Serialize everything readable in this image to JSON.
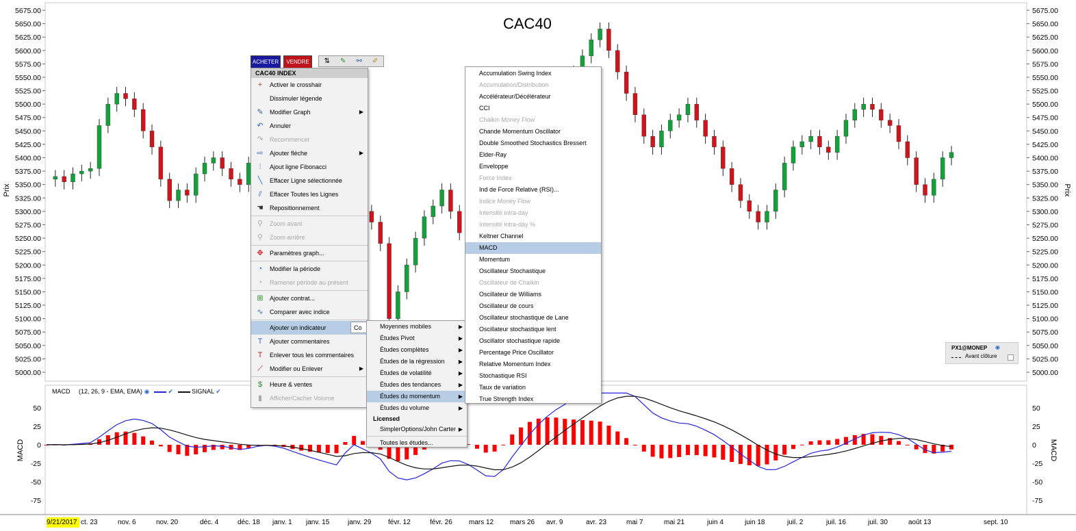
{
  "chart_title": "CAC40",
  "buttons": {
    "buy": "ACHETER",
    "sell": "VENDRE"
  },
  "y_axis": {
    "label": "Prix",
    "ticks": [
      "5675.00",
      "5650.00",
      "5625.00",
      "5600.00",
      "5575.00",
      "5550.00",
      "5525.00",
      "5500.00",
      "5475.00",
      "5450.00",
      "5425.00",
      "5400.00",
      "5375.00",
      "5350.00",
      "5325.00",
      "5300.00",
      "5275.00",
      "5250.00",
      "5225.00",
      "5200.00",
      "5175.00",
      "5150.00",
      "5125.00",
      "5100.00",
      "5075.00",
      "5050.00",
      "5025.00",
      "5000.00"
    ]
  },
  "macd_axis": {
    "label": "MACD",
    "ticks": [
      "50",
      "25",
      "0",
      "-25",
      "-50",
      "-75"
    ]
  },
  "macd_legend": {
    "name": "MACD",
    "params": "(12, 26, 9 - EMA, EMA)",
    "signal": "SIGNAL"
  },
  "x_axis": {
    "first_date": "9/21/2017",
    "ticks": [
      "ct. 23",
      "nov. 6",
      "nov. 20",
      "déc. 4",
      "déc. 18",
      "janv. 1",
      "janv. 15",
      "janv. 29",
      "févr. 12",
      "févr. 26",
      "mars 12",
      "mars 26",
      "avr. 9",
      "avr. 23",
      "mai 7",
      "mai 21",
      "juin 4",
      "juin 18",
      "juil. 2",
      "juil. 16",
      "juil. 30",
      "août 13",
      "sept. 10"
    ]
  },
  "legend_box": {
    "source": "PX1@MONEP",
    "line": "Avant clôture"
  },
  "context_menu": {
    "header": "CAC40 INDEX",
    "items": [
      {
        "label": "Activer le crosshair",
        "icon": "crosshair-icon"
      },
      {
        "label": "Dissimuler légende",
        "icon": ""
      },
      {
        "label": "Modifier Graph",
        "icon": "pencil-chart-icon",
        "submenu": true
      },
      {
        "label": "Annuler",
        "icon": "undo-icon"
      },
      {
        "label": "Recommencer",
        "icon": "redo-icon",
        "disabled": true
      },
      {
        "label": "Ajouter flèche",
        "icon": "arrow-icon",
        "submenu": true
      },
      {
        "label": "Ajout ligne Fibonacci",
        "icon": "fibonacci-icon"
      },
      {
        "label": "Effacer Ligne sélectionnée",
        "icon": "erase-line-icon"
      },
      {
        "label": "Effacer Toutes les Lignes",
        "icon": "erase-all-lines-icon"
      },
      {
        "label": "Repositionnement",
        "icon": "hand-icon"
      },
      {
        "label": "Zoom avant",
        "icon": "zoom-in-icon",
        "disabled": true
      },
      {
        "label": "Zoom arrière",
        "icon": "zoom-out-icon",
        "disabled": true
      },
      {
        "label": "Paramètres graph...",
        "icon": "settings-icon"
      },
      {
        "label": "Modifier la période",
        "icon": "period-icon"
      },
      {
        "label": "Ramener période au présent",
        "icon": "reset-period-icon",
        "disabled": true
      },
      {
        "label": "Ajouter contrat...",
        "icon": "add-contract-icon"
      },
      {
        "label": "Comparer avec indice",
        "icon": "compare-icon"
      },
      {
        "label": "Ajouter un indicateur",
        "icon": "",
        "highlighted": true
      },
      {
        "label": "Ajouter commentaires",
        "icon": "comment-icon"
      },
      {
        "label": "Enlever tous les commentaires",
        "icon": "remove-comments-icon"
      },
      {
        "label": "Modifier ou Enlever",
        "icon": "edit-icon",
        "submenu": true
      },
      {
        "label": "Heure & ventes",
        "icon": "dollar-icon"
      },
      {
        "label": "Afficher/Cacher Volume",
        "icon": "volume-icon",
        "disabled": true
      }
    ],
    "tooltip": "Co"
  },
  "indicator_menu": {
    "items": [
      "Moyennes mobiles",
      "Études Pivot",
      "Études complètes",
      "Études de la régression",
      "Études de volatilité",
      "Études des tendances",
      "Études du momentum",
      "Études du volume"
    ],
    "highlighted": "Études du momentum",
    "licensed_label": "Licensed",
    "licensed_items": [
      "SimplerOptions/John Carter"
    ],
    "all_studies": "Toutes les études..."
  },
  "momentum_menu": {
    "items": [
      {
        "label": "Accumulation Swing Index"
      },
      {
        "label": "Accumulation/Distribution",
        "disabled": true
      },
      {
        "label": "Accélérateur/Décélérateur"
      },
      {
        "label": "CCI"
      },
      {
        "label": "Chaikin Money Flow",
        "disabled": true
      },
      {
        "label": "Chande Momentum Oscillator"
      },
      {
        "label": "Double Smoothed Stochastics Bressert"
      },
      {
        "label": "Elder-Ray"
      },
      {
        "label": "Enveloppe"
      },
      {
        "label": "Force Index",
        "disabled": true
      },
      {
        "label": "Ind de Force Relative (RSI)..."
      },
      {
        "label": "Indice Money Flow",
        "disabled": true
      },
      {
        "label": "Intensité intra-day",
        "disabled": true
      },
      {
        "label": "Intensité intra-day %",
        "disabled": true
      },
      {
        "label": "Keltner Channel"
      },
      {
        "label": "MACD",
        "highlighted": true
      },
      {
        "label": "Momentum"
      },
      {
        "label": "Oscillateur Stochastique"
      },
      {
        "label": "Oscillateur de Chaikin",
        "disabled": true
      },
      {
        "label": "Oscillateur de Williams"
      },
      {
        "label": "Oscillateur de cours"
      },
      {
        "label": "Oscillateur stochastique de Lane"
      },
      {
        "label": "Oscillateur stochastique lent"
      },
      {
        "label": "Oscillator stochastique rapide"
      },
      {
        "label": "Percentage Price Oscillator"
      },
      {
        "label": "Relative Momentum Index"
      },
      {
        "label": "Stochastique RSI"
      },
      {
        "label": "Taux de variation"
      },
      {
        "label": "True Strength Index"
      }
    ]
  },
  "colors": {
    "up": "#14a03a",
    "down": "#d0141c",
    "macd": "#2424d8",
    "signal": "#111111",
    "histogram": "#ff0000",
    "menu_highlight": "#b7cde6"
  },
  "chart_data": {
    "type": "candlestick",
    "title": "CAC40",
    "ylabel": "Prix",
    "ylim": [
      5000,
      5675
    ],
    "close_path": [
      5360,
      5365,
      5355,
      5370,
      5375,
      5380,
      5460,
      5500,
      5520,
      5510,
      5490,
      5450,
      5420,
      5360,
      5320,
      5340,
      5330,
      5370,
      5390,
      5400,
      5380,
      5360,
      5350,
      5390,
      5410,
      5400,
      5370,
      5350,
      5320,
      5310,
      5300,
      5290,
      5280,
      5270,
      5500,
      5480,
      5300,
      5280,
      5240,
      5100,
      5150,
      5200,
      5250,
      5290,
      5310,
      5340,
      5300,
      5260,
      5200,
      5150,
      5120,
      5180,
      5300,
      5420,
      5440,
      5480,
      5500,
      5510,
      5520,
      5530,
      5560,
      5590,
      5620,
      5640,
      5600,
      5560,
      5520,
      5480,
      5440,
      5420,
      5450,
      5470,
      5480,
      5500,
      5470,
      5440,
      5420,
      5380,
      5350,
      5320,
      5300,
      5280,
      5300,
      5340,
      5390,
      5420,
      5430,
      5440,
      5420,
      5410,
      5440,
      5470,
      5490,
      5500,
      5490,
      5470,
      5460,
      5430,
      5400,
      5350,
      5330,
      5360,
      5400,
      5410
    ],
    "macd_ylim": [
      -85,
      70
    ]
  }
}
